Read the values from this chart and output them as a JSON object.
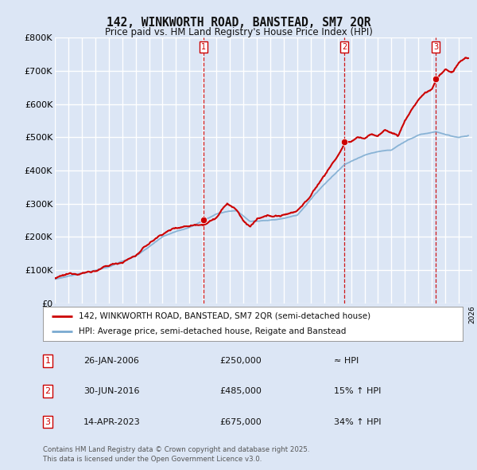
{
  "title": "142, WINKWORTH ROAD, BANSTEAD, SM7 2QR",
  "subtitle": "Price paid vs. HM Land Registry's House Price Index (HPI)",
  "red_label": "142, WINKWORTH ROAD, BANSTEAD, SM7 2QR (semi-detached house)",
  "blue_label": "HPI: Average price, semi-detached house, Reigate and Banstead",
  "yticks": [
    0,
    100000,
    200000,
    300000,
    400000,
    500000,
    600000,
    700000,
    800000
  ],
  "ytick_labels": [
    "£0",
    "£100K",
    "£200K",
    "£300K",
    "£400K",
    "£500K",
    "£600K",
    "£700K",
    "£800K"
  ],
  "background_color": "#dce6f5",
  "plot_bg_color": "#dce6f5",
  "grid_color": "#ffffff",
  "sale_markers": [
    {
      "date_num": 2006.07,
      "price": 250000,
      "label": "1"
    },
    {
      "date_num": 2016.5,
      "price": 485000,
      "label": "2"
    },
    {
      "date_num": 2023.29,
      "price": 675000,
      "label": "3"
    }
  ],
  "table_rows": [
    {
      "num": "1",
      "date": "26-JAN-2006",
      "price": "£250,000",
      "hpi": "≈ HPI"
    },
    {
      "num": "2",
      "date": "30-JUN-2016",
      "price": "£485,000",
      "hpi": "15% ↑ HPI"
    },
    {
      "num": "3",
      "date": "14-APR-2023",
      "price": "£675,000",
      "hpi": "34% ↑ HPI"
    }
  ],
  "footnote": "Contains HM Land Registry data © Crown copyright and database right 2025.\nThis data is licensed under the Open Government Licence v3.0.",
  "xmin": 1995,
  "xmax": 2026,
  "ymin": 0,
  "ymax": 800000,
  "red_color": "#cc0000",
  "blue_color": "#7aaad0",
  "dashed_color": "#cc0000"
}
